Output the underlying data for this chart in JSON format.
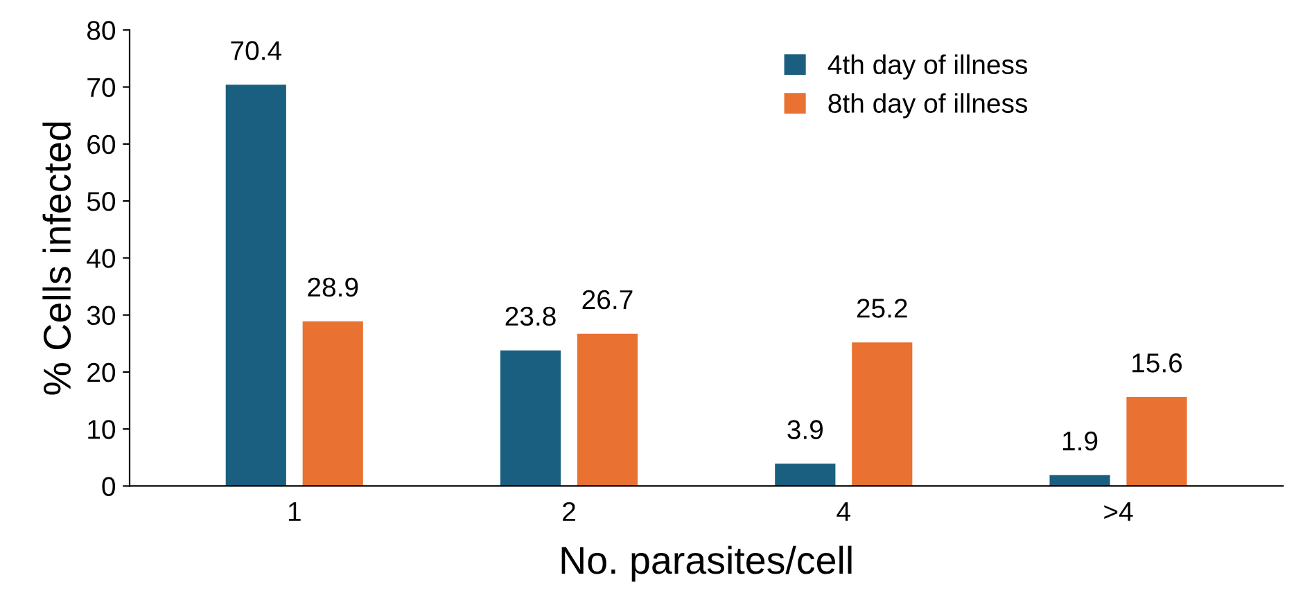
{
  "chart_data": {
    "type": "bar",
    "xlabel": "No. parasites/cell",
    "ylabel": "% Cells infected",
    "categories": [
      "1",
      "2",
      "4",
      ">4"
    ],
    "series": [
      {
        "name": "4th day of illness",
        "color": "#1a5f80",
        "values": [
          70.4,
          23.8,
          3.9,
          1.9
        ]
      },
      {
        "name": "8th day of illness",
        "color": "#e97132",
        "values": [
          28.9,
          26.7,
          25.2,
          15.6
        ]
      }
    ],
    "ylim": [
      0,
      80
    ],
    "yticks": [
      0,
      10,
      20,
      30,
      40,
      50,
      60,
      70,
      80
    ],
    "grid": false,
    "legend": "top right",
    "data_labels": true
  }
}
